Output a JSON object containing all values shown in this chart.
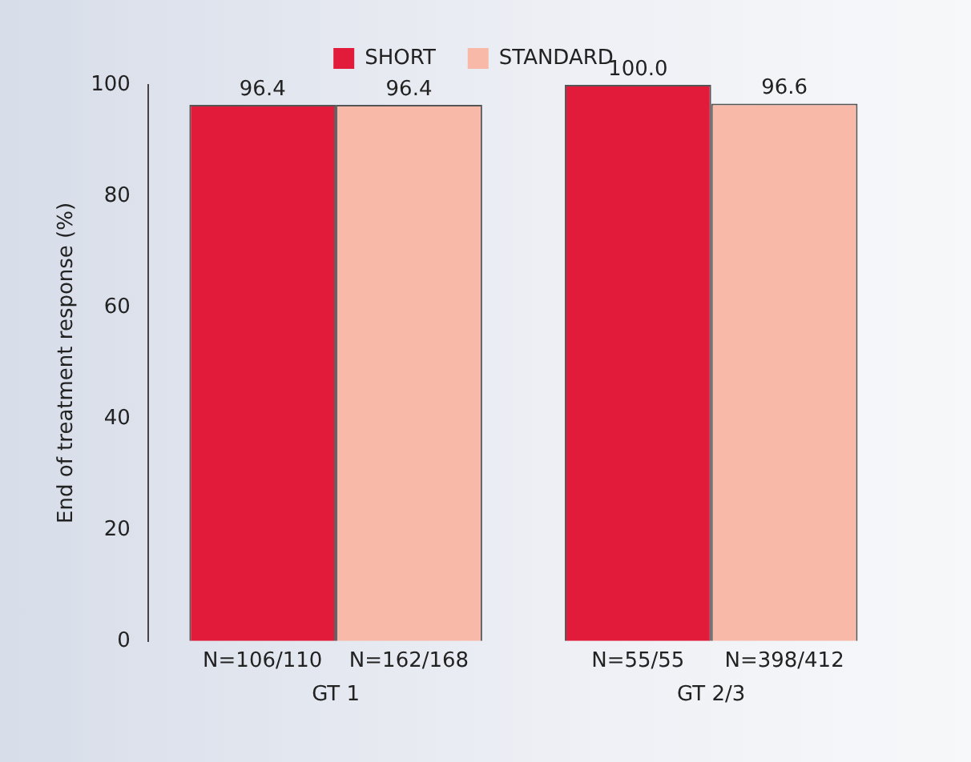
{
  "chart_data": {
    "type": "bar",
    "ylabel": "End of treatment response (%)",
    "categories": [
      "GT 1",
      "GT 2/3"
    ],
    "series": [
      {
        "name": "SHORT",
        "color": "#e31b3a",
        "values": [
          96.4,
          100.0
        ],
        "value_labels": [
          "96.4",
          "100.0"
        ]
      },
      {
        "name": "STANDARD",
        "color": "#f9b9a8",
        "values": [
          96.4,
          96.6
        ],
        "value_labels": [
          "96.4",
          "96.6"
        ]
      }
    ],
    "ylim": [
      0,
      100
    ],
    "yticks": [
      0,
      20,
      40,
      60,
      80,
      100
    ],
    "grid": false,
    "legend": "top",
    "annotations": [
      "N=106/110",
      "N=162/168",
      "N=55/55",
      "N=398/412"
    ]
  }
}
